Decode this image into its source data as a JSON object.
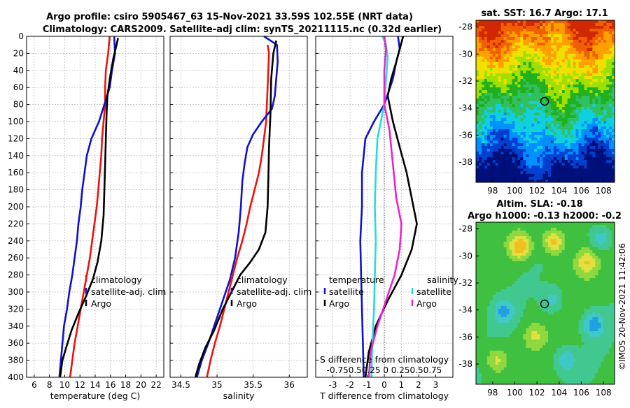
{
  "figure": {
    "title_line1": "Argo profile: csiro 5905467_63 15-Nov-2021 33.59S 102.55E (NRT data)",
    "title_line2": "Climatology: CARS2009. Satellite-adj clim: synTS_20211115.nc (0.32d earlier)",
    "credit": "©IMOS 20-Nov-2021 11:42:06"
  },
  "colors": {
    "argo": "#000000",
    "climatology": "#ee1111",
    "satellite_clim": "#1111cc",
    "temp_satellite_diff": "#1111cc",
    "sal_satellite_diff": "#22dddd",
    "sal_argo_diff": "#ee22cc",
    "zero_line": "#555555",
    "marker": "#000000"
  },
  "chart_data": [
    {
      "id": "temperature",
      "type": "line",
      "xlabel": "temperature (deg C)",
      "ylabel": "",
      "xlim": [
        5,
        23
      ],
      "ylim": [
        400,
        0
      ],
      "xticks": [
        6,
        8,
        10,
        12,
        14,
        16,
        18,
        20,
        22
      ],
      "yticks": [
        0,
        20,
        40,
        60,
        80,
        100,
        120,
        140,
        160,
        180,
        200,
        220,
        240,
        260,
        280,
        300,
        320,
        340,
        360,
        380,
        400
      ],
      "legend": [
        "climatology",
        "satellite-adj. clim",
        "Argo"
      ],
      "series": [
        {
          "name": "climatology",
          "color": "#ee1111",
          "points": [
            [
              15.9,
              0
            ],
            [
              15.7,
              20
            ],
            [
              15.4,
              40
            ],
            [
              15.3,
              60
            ],
            [
              15.3,
              80
            ],
            [
              15.1,
              100
            ],
            [
              14.9,
              120
            ],
            [
              14.8,
              140
            ],
            [
              14.6,
              160
            ],
            [
              14.4,
              180
            ],
            [
              14.2,
              200
            ],
            [
              13.9,
              220
            ],
            [
              13.6,
              240
            ],
            [
              13.3,
              260
            ],
            [
              12.9,
              280
            ],
            [
              12.5,
              300
            ],
            [
              12.1,
              320
            ],
            [
              11.7,
              340
            ],
            [
              11.3,
              360
            ],
            [
              11.0,
              380
            ],
            [
              10.7,
              400
            ]
          ]
        },
        {
          "name": "satellite-adj. clim",
          "color": "#1111cc",
          "points": [
            [
              16.5,
              0
            ],
            [
              16.6,
              20
            ],
            [
              16.2,
              40
            ],
            [
              15.9,
              60
            ],
            [
              15.2,
              80
            ],
            [
              14.5,
              100
            ],
            [
              13.5,
              120
            ],
            [
              12.9,
              140
            ],
            [
              12.6,
              160
            ],
            [
              12.3,
              180
            ],
            [
              12.1,
              200
            ],
            [
              11.8,
              220
            ],
            [
              11.6,
              240
            ],
            [
              11.3,
              260
            ],
            [
              11.0,
              280
            ],
            [
              10.6,
              300
            ],
            [
              10.3,
              320
            ],
            [
              9.9,
              340
            ],
            [
              9.7,
              360
            ],
            [
              9.5,
              380
            ],
            [
              9.3,
              400
            ]
          ]
        },
        {
          "name": "Argo",
          "color": "#000000",
          "points": [
            [
              17.0,
              2
            ],
            [
              16.8,
              10
            ],
            [
              16.4,
              25
            ],
            [
              16.0,
              45
            ],
            [
              15.6,
              70
            ],
            [
              15.5,
              90
            ],
            [
              15.4,
              120
            ],
            [
              15.3,
              150
            ],
            [
              15.2,
              180
            ],
            [
              15.1,
              210
            ],
            [
              14.8,
              240
            ],
            [
              14.3,
              265
            ],
            [
              13.7,
              285
            ],
            [
              12.8,
              305
            ],
            [
              11.8,
              325
            ],
            [
              10.9,
              345
            ],
            [
              10.2,
              365
            ],
            [
              9.7,
              380
            ],
            [
              9.4,
              400
            ]
          ]
        }
      ]
    },
    {
      "id": "salinity",
      "type": "line",
      "xlabel": "salinity",
      "ylabel": "",
      "xlim": [
        34.35,
        36.25
      ],
      "ylim": [
        400,
        0
      ],
      "xticks": [
        34.5,
        35,
        35.5,
        36
      ],
      "xticklabels": [
        "34.5",
        "35",
        "35.5",
        "36"
      ],
      "legend": [
        "climatology",
        "satellite-adj. clim",
        "Argo"
      ],
      "series": [
        {
          "name": "climatology",
          "color": "#ee1111",
          "points": [
            [
              35.7,
              10
            ],
            [
              35.72,
              20
            ],
            [
              35.71,
              40
            ],
            [
              35.7,
              60
            ],
            [
              35.69,
              80
            ],
            [
              35.68,
              100
            ],
            [
              35.65,
              120
            ],
            [
              35.62,
              140
            ],
            [
              35.58,
              160
            ],
            [
              35.52,
              180
            ],
            [
              35.46,
              200
            ],
            [
              35.41,
              220
            ],
            [
              35.35,
              240
            ],
            [
              35.28,
              260
            ],
            [
              35.22,
              280
            ],
            [
              35.16,
              300
            ],
            [
              35.1,
              320
            ],
            [
              35.04,
              340
            ],
            [
              34.97,
              360
            ],
            [
              34.91,
              380
            ],
            [
              34.86,
              400
            ]
          ]
        },
        {
          "name": "satellite-adj. clim",
          "color": "#1111cc",
          "points": [
            [
              35.65,
              0
            ],
            [
              35.83,
              10
            ],
            [
              35.84,
              30
            ],
            [
              35.82,
              50
            ],
            [
              35.8,
              70
            ],
            [
              35.76,
              85
            ],
            [
              35.62,
              100
            ],
            [
              35.5,
              115
            ],
            [
              35.42,
              130
            ],
            [
              35.38,
              150
            ],
            [
              35.35,
              170
            ],
            [
              35.33,
              200
            ],
            [
              35.3,
              230
            ],
            [
              35.25,
              260
            ],
            [
              35.18,
              285
            ],
            [
              35.08,
              310
            ],
            [
              34.98,
              335
            ],
            [
              34.88,
              360
            ],
            [
              34.79,
              380
            ],
            [
              34.72,
              400
            ]
          ]
        },
        {
          "name": "Argo",
          "color": "#000000",
          "points": [
            [
              35.82,
              5
            ],
            [
              35.78,
              20
            ],
            [
              35.75,
              50
            ],
            [
              35.74,
              90
            ],
            [
              35.72,
              130
            ],
            [
              35.71,
              170
            ],
            [
              35.7,
              200
            ],
            [
              35.67,
              230
            ],
            [
              35.58,
              250
            ],
            [
              35.46,
              265
            ],
            [
              35.32,
              280
            ],
            [
              35.2,
              300
            ],
            [
              35.08,
              320
            ],
            [
              34.96,
              345
            ],
            [
              34.84,
              365
            ],
            [
              34.75,
              385
            ],
            [
              34.7,
              400
            ]
          ]
        }
      ]
    },
    {
      "id": "difference",
      "type": "line",
      "xlabel": "T difference from climatology",
      "xlabel_top": "S difference from climatology",
      "ylabel": "",
      "xlim": [
        -4,
        4
      ],
      "ylim": [
        400,
        0
      ],
      "xticks": [
        -3,
        -2,
        -1,
        0,
        1,
        2,
        3
      ],
      "xticklabels": [
        "-3",
        "-2",
        "-1",
        "0",
        "1",
        "2",
        "3"
      ],
      "s_ticklabels_text": "-0.750.50.25  0  0.250.50.75",
      "legend_temperature_title": "temperature",
      "legend_salinity_title": "salinity",
      "legend": [
        "satellite",
        "Argo",
        "satellite",
        "Argo"
      ],
      "series": [
        {
          "name": "temperature satellite",
          "color": "#1111cc",
          "points": [
            [
              0.8,
              0
            ],
            [
              0.9,
              15
            ],
            [
              0.7,
              30
            ],
            [
              0.5,
              50
            ],
            [
              0.0,
              80
            ],
            [
              -0.6,
              100
            ],
            [
              -1.1,
              120
            ],
            [
              -1.3,
              160
            ],
            [
              -1.3,
              200
            ],
            [
              -1.4,
              240
            ],
            [
              -1.35,
              280
            ],
            [
              -1.3,
              320
            ],
            [
              -1.25,
              360
            ],
            [
              -1.2,
              400
            ]
          ]
        },
        {
          "name": "temperature Argo",
          "color": "#000000",
          "points": [
            [
              1.1,
              0
            ],
            [
              0.9,
              15
            ],
            [
              0.7,
              30
            ],
            [
              0.4,
              50
            ],
            [
              0.2,
              70
            ],
            [
              0.5,
              100
            ],
            [
              0.9,
              130
            ],
            [
              1.3,
              160
            ],
            [
              1.6,
              190
            ],
            [
              1.9,
              220
            ],
            [
              1.6,
              250
            ],
            [
              1.0,
              280
            ],
            [
              0.2,
              310
            ],
            [
              -0.5,
              340
            ],
            [
              -0.9,
              370
            ],
            [
              -1.1,
              400
            ]
          ]
        },
        {
          "name": "salinity satellite",
          "color": "#22dddd",
          "points": [
            [
              -0.1,
              0
            ],
            [
              0.1,
              10
            ],
            [
              0.2,
              25
            ],
            [
              0.1,
              50
            ],
            [
              0.0,
              80
            ],
            [
              -0.2,
              100
            ],
            [
              -0.4,
              120
            ],
            [
              -0.5,
              160
            ],
            [
              -0.55,
              200
            ],
            [
              -0.5,
              240
            ],
            [
              -0.55,
              280
            ],
            [
              -0.6,
              320
            ],
            [
              -0.7,
              360
            ],
            [
              -0.75,
              400
            ]
          ]
        },
        {
          "name": "salinity Argo",
          "color": "#ee22cc",
          "points": [
            [
              0.0,
              0
            ],
            [
              0.1,
              15
            ],
            [
              0.0,
              40
            ],
            [
              0.0,
              80
            ],
            [
              0.3,
              110
            ],
            [
              0.5,
              150
            ],
            [
              0.7,
              190
            ],
            [
              1.0,
              220
            ],
            [
              0.9,
              250
            ],
            [
              0.6,
              280
            ],
            [
              0.1,
              310
            ],
            [
              -0.4,
              340
            ],
            [
              -0.8,
              370
            ],
            [
              -0.9,
              400
            ]
          ]
        }
      ]
    },
    {
      "id": "sst_map",
      "type": "heatmap",
      "title": "sat. SST: 16.7 Argo: 17.1",
      "xlim": [
        96.5,
        109
      ],
      "ylim": [
        -39.5,
        -27.5
      ],
      "xticks": [
        98,
        100,
        102,
        104,
        106,
        108
      ],
      "yticks": [
        -28,
        -30,
        -32,
        -34,
        -36,
        -38
      ],
      "profile_location": [
        102.55,
        -33.59
      ],
      "colormap": [
        "#00107a",
        "#0040d0",
        "#0090ff",
        "#10d0e0",
        "#30c060",
        "#20b020",
        "#a0e000",
        "#f0e000",
        "#ffa000",
        "#f06000",
        "#d02800"
      ]
    },
    {
      "id": "sla_map",
      "type": "heatmap",
      "title": "Altim. SLA: -0.18",
      "subtitle": "Argo h1000: -0.13 h2000: -0.2",
      "xlim": [
        96.5,
        109
      ],
      "ylim": [
        -39.5,
        -27.5
      ],
      "xticks": [
        98,
        100,
        102,
        104,
        106,
        108
      ],
      "yticks": [
        -28,
        -30,
        -32,
        -34,
        -36,
        -38
      ],
      "profile_location": [
        102.55,
        -33.59
      ],
      "colormap": [
        "#20a0e0",
        "#40c8c8",
        "#40c890",
        "#40c040",
        "#90d840",
        "#e0e040",
        "#f0c020"
      ]
    }
  ]
}
